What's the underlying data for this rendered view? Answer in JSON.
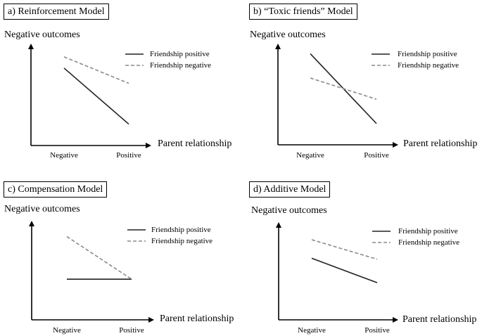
{
  "chart_data": [
    {
      "type": "line",
      "title": "a) Reinforcement Model",
      "ylabel": "Negative outcomes",
      "xlabel": "Parent relationship",
      "categories": [
        "Negative",
        "Positive"
      ],
      "ylim": [
        0,
        10
      ],
      "grid": false,
      "legend": "top-right",
      "series": [
        {
          "name": "Friendship positive",
          "values": [
            7.6,
            2.1
          ],
          "style": "solid",
          "color": "#222222"
        },
        {
          "name": "Friendship negative",
          "values": [
            8.7,
            6.1
          ],
          "style": "dashed",
          "color": "#8a8a8a"
        }
      ]
    },
    {
      "type": "line",
      "title": "b) “Toxic friends” Model",
      "ylabel": "Negative outcomes",
      "xlabel": "Parent relationship",
      "categories": [
        "Negative",
        "Positive"
      ],
      "ylim": [
        0,
        10
      ],
      "grid": false,
      "legend": "top-right",
      "series": [
        {
          "name": "Friendship positive",
          "values": [
            9.0,
            2.1
          ],
          "style": "solid",
          "color": "#222222"
        },
        {
          "name": "Friendship negative",
          "values": [
            6.6,
            4.5
          ],
          "style": "dashed",
          "color": "#8a8a8a"
        }
      ]
    },
    {
      "type": "line",
      "title": "c) Compensation Model",
      "ylabel": "Negative outcomes",
      "xlabel": "Parent relationship",
      "categories": [
        "Negative",
        "Positive"
      ],
      "ylim": [
        0,
        10
      ],
      "grid": false,
      "legend": "top-right",
      "series": [
        {
          "name": "Friendship positive",
          "values": [
            4.1,
            4.1
          ],
          "style": "solid",
          "color": "#222222"
        },
        {
          "name": "Friendship negative",
          "values": [
            8.4,
            4.1
          ],
          "style": "dashed",
          "color": "#8a8a8a"
        }
      ]
    },
    {
      "type": "line",
      "title": "d) Additive Model",
      "ylabel": "Negative outcomes",
      "xlabel": "Parent relationship",
      "categories": [
        "Negative",
        "Positive"
      ],
      "ylim": [
        0,
        10
      ],
      "grid": false,
      "legend": "top-right",
      "series": [
        {
          "name": "Friendship positive",
          "values": [
            6.3,
            3.8
          ],
          "style": "solid",
          "color": "#222222"
        },
        {
          "name": "Friendship negative",
          "values": [
            8.2,
            6.2
          ],
          "style": "dashed",
          "color": "#8a8a8a"
        }
      ]
    }
  ]
}
